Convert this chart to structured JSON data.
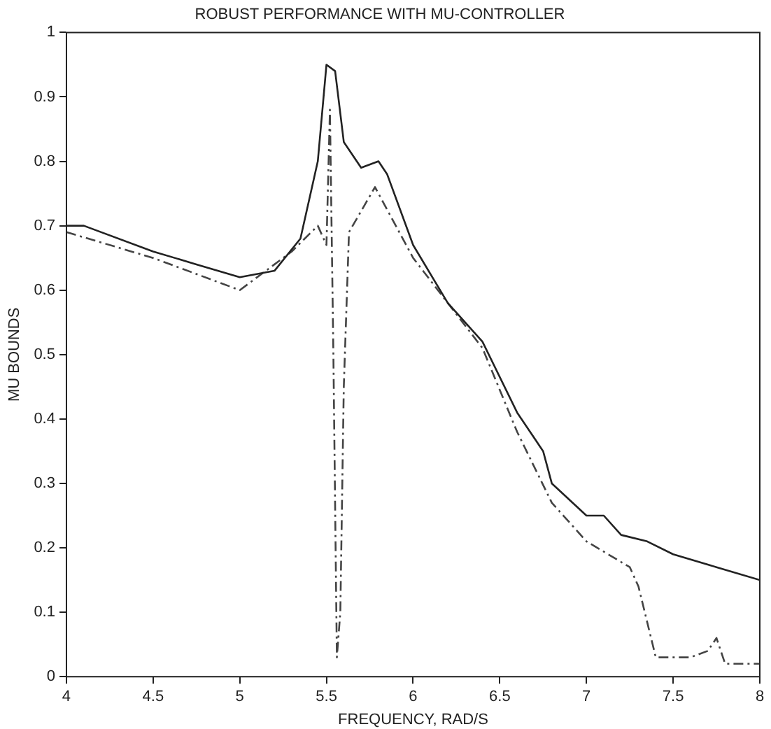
{
  "chart_data": {
    "type": "line",
    "title": "ROBUST PERFORMANCE WITH MU-CONTROLLER",
    "xlabel": "FREQUENCY, RAD/S",
    "ylabel": "MU BOUNDS",
    "xlim": [
      4,
      8
    ],
    "xticks": [
      4,
      4.5,
      5,
      5.5,
      6,
      6.5,
      7,
      7.5,
      8
    ],
    "ylim": [
      0,
      1
    ],
    "yticks": [
      0,
      0.1,
      0.2,
      0.3,
      0.4,
      0.5,
      0.6,
      0.7,
      0.8,
      0.9,
      1
    ],
    "grid": false,
    "legend": false,
    "marker": "none",
    "series": [
      {
        "color": "#222222",
        "line_style": "solid",
        "x": [
          4,
          4.1,
          4.5,
          4.75,
          5,
          5.2,
          5.35,
          5.45,
          5.5,
          5.55,
          5.6,
          5.7,
          5.8,
          5.85,
          6,
          6.2,
          6.4,
          6.6,
          6.75,
          6.8,
          7,
          7.1,
          7.2,
          7.35,
          7.5,
          7.75,
          8
        ],
        "values": [
          0.7,
          0.7,
          0.66,
          0.64,
          0.62,
          0.63,
          0.68,
          0.8,
          0.95,
          0.94,
          0.83,
          0.79,
          0.8,
          0.78,
          0.67,
          0.58,
          0.52,
          0.41,
          0.35,
          0.3,
          0.25,
          0.25,
          0.22,
          0.21,
          0.19,
          0.17,
          0.15
        ]
      },
      {
        "color": "#444444",
        "line_style": "dashed",
        "x": [
          4,
          4.5,
          5,
          5.3,
          5.45,
          5.5,
          5.52,
          5.54,
          5.56,
          5.58,
          5.6,
          5.63,
          5.78,
          6,
          6.2,
          6.4,
          6.6,
          6.8,
          7,
          7.25,
          7.3,
          7.4,
          7.55,
          7.6,
          7.7,
          7.75,
          7.8,
          8
        ],
        "values": [
          0.69,
          0.65,
          0.6,
          0.66,
          0.7,
          0.67,
          0.88,
          0.5,
          0.03,
          0.1,
          0.45,
          0.69,
          0.76,
          0.65,
          0.58,
          0.51,
          0.38,
          0.27,
          0.21,
          0.17,
          0.14,
          0.03,
          0.03,
          0.03,
          0.04,
          0.06,
          0.02,
          0.02
        ]
      }
    ]
  }
}
